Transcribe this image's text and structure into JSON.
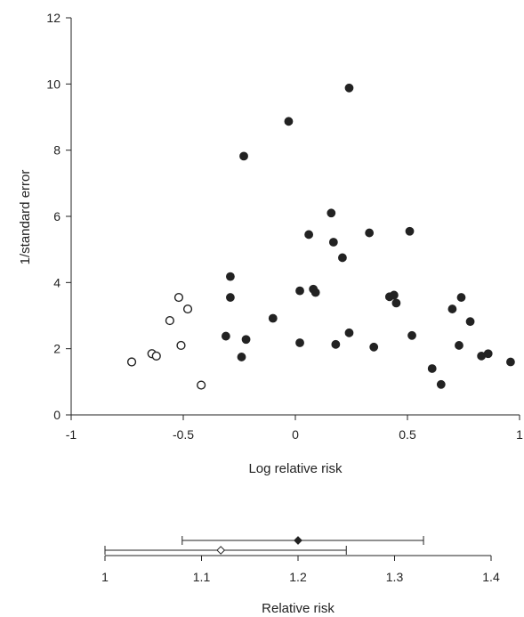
{
  "chart_data": [
    {
      "type": "scatter",
      "xlabel": "Log relative risk",
      "ylabel": "1/standard error",
      "xlim": [
        -1,
        1
      ],
      "ylim": [
        0,
        12
      ],
      "x_ticks": [
        -1,
        -0.5,
        0,
        0.5,
        1
      ],
      "x_tick_labels": [
        "-1",
        "-0.5",
        "0",
        "0.5",
        "1"
      ],
      "y_ticks": [
        0,
        2,
        4,
        6,
        8,
        10,
        12
      ],
      "y_tick_labels": [
        "0",
        "2",
        "4",
        "6",
        "8",
        "10",
        "12"
      ],
      "grid": false,
      "series": [
        {
          "marker": "open-circle",
          "points": [
            [
              -0.73,
              1.6
            ],
            [
              -0.64,
              1.85
            ],
            [
              -0.62,
              1.78
            ],
            [
              -0.56,
              2.85
            ],
            [
              -0.52,
              3.55
            ],
            [
              -0.51,
              2.1
            ],
            [
              -0.48,
              3.2
            ],
            [
              -0.42,
              0.9
            ]
          ]
        },
        {
          "marker": "filled-circle",
          "points": [
            [
              -0.31,
              2.38
            ],
            [
              -0.29,
              4.18
            ],
            [
              -0.29,
              3.55
            ],
            [
              -0.24,
              1.75
            ],
            [
              -0.23,
              7.82
            ],
            [
              -0.22,
              2.28
            ],
            [
              -0.1,
              2.92
            ],
            [
              -0.03,
              8.87
            ],
            [
              0.02,
              3.75
            ],
            [
              0.02,
              2.18
            ],
            [
              0.06,
              5.45
            ],
            [
              0.08,
              3.8
            ],
            [
              0.09,
              3.7
            ],
            [
              0.16,
              6.1
            ],
            [
              0.17,
              5.22
            ],
            [
              0.18,
              2.13
            ],
            [
              0.21,
              4.75
            ],
            [
              0.24,
              9.88
            ],
            [
              0.24,
              2.48
            ],
            [
              0.33,
              5.5
            ],
            [
              0.35,
              2.05
            ],
            [
              0.42,
              3.57
            ],
            [
              0.44,
              3.62
            ],
            [
              0.45,
              3.38
            ],
            [
              0.51,
              5.55
            ],
            [
              0.52,
              2.4
            ],
            [
              0.61,
              1.4
            ],
            [
              0.65,
              0.92
            ],
            [
              0.7,
              3.2
            ],
            [
              0.73,
              2.1
            ],
            [
              0.74,
              3.55
            ],
            [
              0.78,
              2.82
            ],
            [
              0.83,
              1.78
            ],
            [
              0.86,
              1.85
            ],
            [
              0.96,
              1.6
            ]
          ]
        }
      ]
    },
    {
      "type": "forest",
      "xlabel": "Relative risk",
      "xlim": [
        1,
        1.4
      ],
      "x_ticks": [
        1,
        1.1,
        1.2,
        1.3,
        1.4
      ],
      "x_tick_labels": [
        "1",
        "1.1",
        "1.2",
        "1.3",
        "1.4"
      ],
      "estimates": [
        {
          "marker": "filled-diamond",
          "point": 1.2,
          "lower": 1.08,
          "upper": 1.33
        },
        {
          "marker": "open-diamond",
          "point": 1.12,
          "lower": 1.0,
          "upper": 1.25
        }
      ]
    }
  ],
  "colors": {
    "ink": "#222222",
    "open_fill": "#ffffff"
  }
}
